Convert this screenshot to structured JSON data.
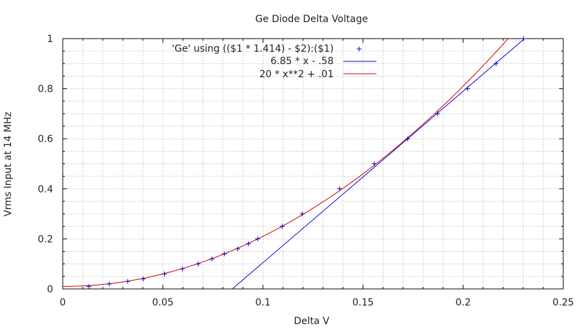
{
  "chart_data": {
    "type": "line",
    "title": "Ge Diode Delta Voltage",
    "xlabel": "Delta V",
    "ylabel": "Vrms Input at 14 MHz",
    "xlim": [
      0,
      0.25
    ],
    "ylim": [
      0,
      1
    ],
    "x_ticks": [
      "0",
      "0.05",
      "0.1",
      "0.15",
      "0.2",
      "0.25"
    ],
    "y_ticks": [
      "0",
      "0.2",
      "0.4",
      "0.6",
      "0.8",
      "1"
    ],
    "grid": true,
    "legend_position": "top-center",
    "series": [
      {
        "name": "'Ge' using (($1 * 1.414) - $2):($1)",
        "style": "points",
        "marker": "+",
        "color": "#0000cc",
        "x": [
          0.0131,
          0.0232,
          0.0324,
          0.0402,
          0.0508,
          0.0597,
          0.0676,
          0.0745,
          0.0807,
          0.0874,
          0.0927,
          0.0974,
          0.1096,
          0.1196,
          0.1383,
          0.1556,
          0.1723,
          0.1872,
          0.2022,
          0.2164,
          0.2301
        ],
        "y": [
          0.01,
          0.02,
          0.03,
          0.04,
          0.06,
          0.08,
          0.1,
          0.12,
          0.14,
          0.16,
          0.18,
          0.2,
          0.25,
          0.3,
          0.4,
          0.5,
          0.6,
          0.7,
          0.8,
          0.9,
          1.0
        ]
      },
      {
        "name": "6.85 * x - .58",
        "style": "line",
        "color": "#0000cc",
        "expression": "6.85 * x - .58",
        "slope": 6.85,
        "intercept": -0.58
      },
      {
        "name": "20 * x**2 + .01",
        "style": "line",
        "color": "#cc0000",
        "expression": "20 * x**2 + .01",
        "a": 20,
        "c": 0.01
      }
    ]
  }
}
